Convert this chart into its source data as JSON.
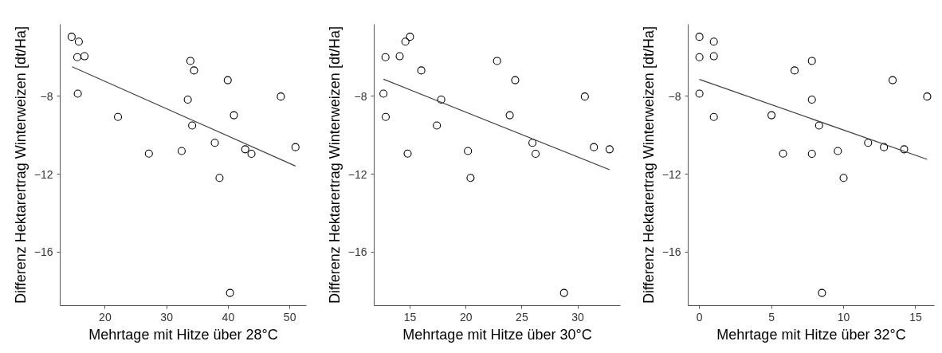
{
  "chart_data": [
    {
      "type": "scatter",
      "xlabel": "Mehrtage mit Hitze über 28°C",
      "ylabel": "Differenz Hektarertrag Winterweizen [dt/Ha]",
      "xlim": [
        12.7,
        52.7
      ],
      "ylim": [
        -18.75,
        -4.3
      ],
      "xticks": [
        20,
        30,
        40,
        50
      ],
      "yticks": [
        -8,
        -12,
        -16
      ],
      "grid": false,
      "series": [
        {
          "marker": "circle",
          "color": "#000000",
          "x": [
            14.56,
            15.73,
            15.48,
            16.65,
            15.56,
            22.09,
            27.11,
            32.43,
            33.43,
            33.85,
            34.44,
            34.14,
            37.82,
            38.58,
            39.92,
            40.92,
            40.29,
            42.76,
            43.77,
            48.54,
            50.92
          ],
          "values": [
            -4.94,
            -5.19,
            -5.99,
            -5.94,
            -7.86,
            -9.06,
            -10.94,
            -10.81,
            -8.17,
            -6.18,
            -6.67,
            -9.5,
            -10.39,
            -12.19,
            -7.17,
            -8.97,
            -18.1,
            -10.72,
            -10.95,
            -8.01,
            -10.61
          ]
        },
        {
          "type": "line",
          "color": "#404040",
          "x": [
            14.64,
            50.92
          ],
          "values": [
            -6.48,
            -11.58
          ]
        }
      ]
    },
    {
      "type": "scatter",
      "xlabel": "Mehrtage mit Hitze über 30°C",
      "ylabel": "Differenz Hektarertrag Winterweizen [dt/Ha]",
      "xlim": [
        11.8,
        33.8
      ],
      "ylim": [
        -18.75,
        -4.3
      ],
      "xticks": [
        15,
        20,
        25,
        30
      ],
      "yticks": [
        -8,
        -12,
        -16
      ],
      "grid": false,
      "series": [
        {
          "marker": "circle",
          "color": "#000000",
          "x": [
            12.81,
            12.63,
            12.83,
            14.08,
            14.59,
            15.0,
            14.79,
            16.01,
            17.4,
            17.79,
            20.18,
            20.41,
            22.78,
            23.91,
            24.4,
            25.94,
            26.22,
            28.76,
            30.62,
            31.43,
            32.83
          ],
          "values": [
            -5.99,
            -7.86,
            -9.06,
            -5.94,
            -5.19,
            -4.94,
            -10.94,
            -6.67,
            -9.5,
            -8.17,
            -10.81,
            -12.19,
            -6.18,
            -8.97,
            -7.17,
            -10.39,
            -10.95,
            -18.1,
            -8.01,
            -10.61,
            -10.72
          ]
        },
        {
          "type": "line",
          "color": "#404040",
          "x": [
            12.63,
            32.83
          ],
          "values": [
            -7.12,
            -11.77
          ]
        }
      ]
    },
    {
      "type": "scatter",
      "xlabel": "Mehrtage mit Hitze über 32°C",
      "ylabel": "Differenz Hektarertrag Winterweizen [dt/Ha]",
      "xlim": [
        -0.78,
        16.3
      ],
      "ylim": [
        -18.75,
        -4.3
      ],
      "xticks": [
        0,
        5,
        10,
        15
      ],
      "yticks": [
        -8,
        -12,
        -16
      ],
      "grid": false,
      "series": [
        {
          "marker": "circle",
          "color": "#000000",
          "x": [
            0,
            0,
            0,
            1.0,
            1.0,
            1.0,
            5.0,
            5.8,
            6.6,
            7.8,
            7.8,
            7.8,
            8.3,
            8.5,
            9.6,
            10.0,
            11.7,
            12.8,
            13.4,
            14.2,
            15.8
          ],
          "values": [
            -4.94,
            -5.99,
            -7.86,
            -5.19,
            -5.94,
            -9.06,
            -8.97,
            -10.94,
            -6.67,
            -6.18,
            -8.17,
            -10.95,
            -9.5,
            -18.1,
            -10.81,
            -12.19,
            -10.39,
            -10.61,
            -7.17,
            -10.72,
            -8.01
          ]
        },
        {
          "type": "line",
          "color": "#404040",
          "x": [
            0,
            15.8
          ],
          "values": [
            -7.13,
            -11.24
          ]
        }
      ]
    }
  ]
}
